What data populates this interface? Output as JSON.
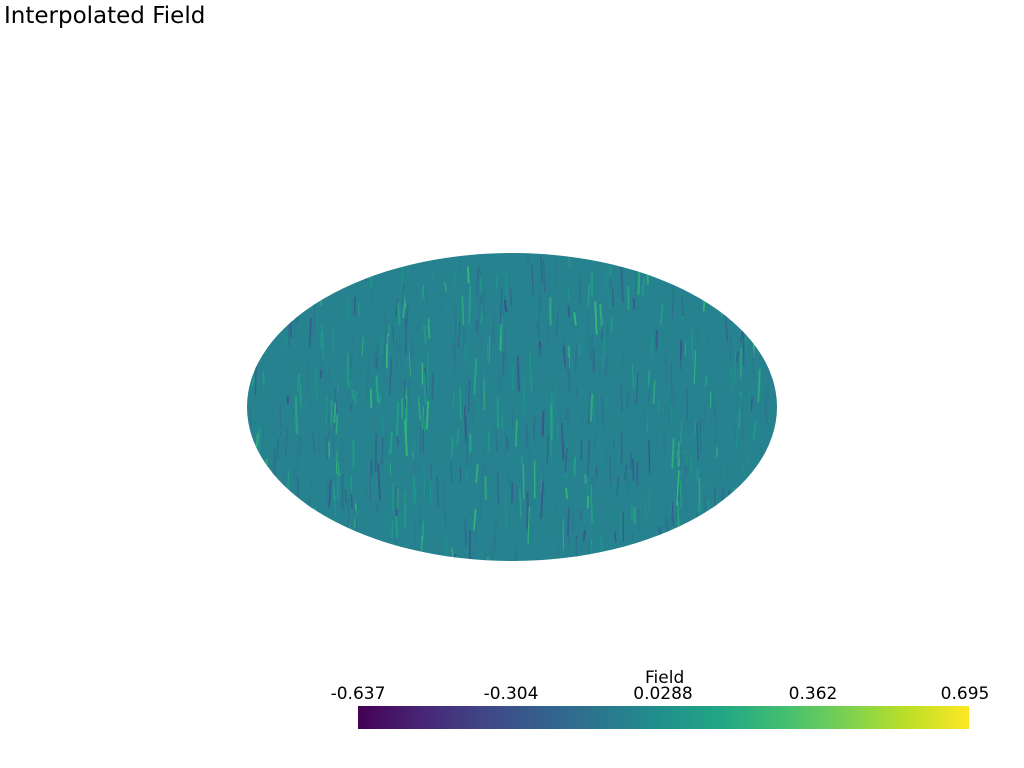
{
  "plot": {
    "title": "Interpolated Field"
  },
  "colorbar": {
    "title": "Field",
    "colormap": "viridis",
    "range": [
      -0.637,
      0.695
    ],
    "ticks": [
      "-0.637",
      "-0.304",
      "0.0288",
      "0.362",
      "0.695"
    ]
  },
  "colors": {
    "background": "#ffffff",
    "surface_base": "#26828e"
  }
}
